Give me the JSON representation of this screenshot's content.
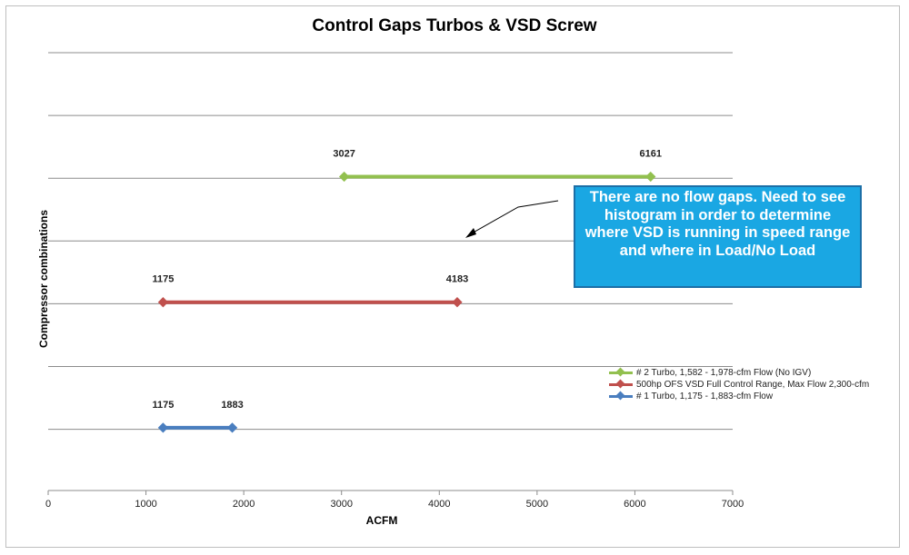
{
  "chart_data": {
    "type": "range-line",
    "title": "Control Gaps Turbos & VSD Screw",
    "xlabel": "ACFM",
    "ylabel": "Compressor combinations",
    "xlim": [
      0,
      7000
    ],
    "x_ticks": [
      "0",
      "1000",
      "2000",
      "3000",
      "4000",
      "5000",
      "6000",
      "7000"
    ],
    "grid": "horizontal",
    "legend_position": "right",
    "series": [
      {
        "name": "# 2 Turbo, 1,582 - 1,978-cfm Flow (No IGV)",
        "color": "#92c04f",
        "level": 3,
        "points": [
          3027,
          6161
        ],
        "labels": [
          "3027",
          "6161"
        ]
      },
      {
        "name": "500hp OFS VSD Full Control Range, Max Flow 2,300-cfm",
        "color": "#c0504d",
        "level": 2,
        "points": [
          1175,
          4183
        ],
        "labels": [
          "1175",
          "4183"
        ]
      },
      {
        "name": "# 1 Turbo, 1,175 - 1,883-cfm Flow",
        "color": "#4a7ebf",
        "level": 1,
        "points": [
          1175,
          1883
        ],
        "labels": [
          "1175",
          "1883"
        ]
      }
    ],
    "annotation": {
      "text": "There are no flow gaps.  Need to see histogram in order to determine where VSD is running in speed range and where in Load/No Load",
      "background": "#1aa7e3"
    }
  }
}
